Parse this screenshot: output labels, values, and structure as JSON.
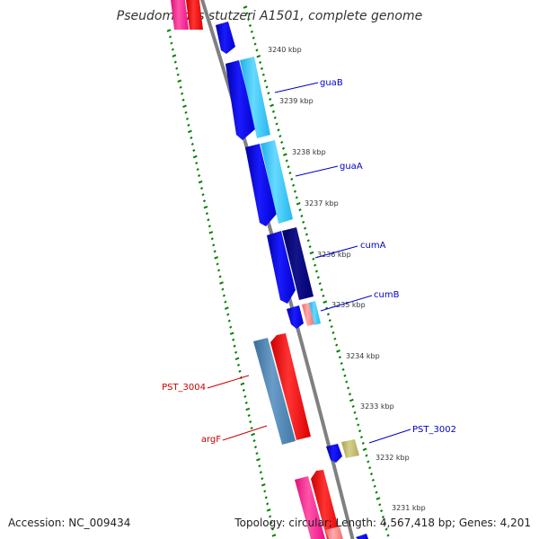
{
  "title": "Pseudomonas stutzeri A1501, complete genome",
  "footer": {
    "accession": "Accession: NC_009434",
    "topology": "Topology: circular; Length: 4,567,418 bp; Genes: 4,201"
  },
  "ticks": [
    "3240 kbp",
    "3239 kbp",
    "3238 kbp",
    "3237 kbp",
    "3236 kbp",
    "3235 kbp",
    "3234 kbp",
    "3233 kbp",
    "3232 kbp",
    "3231 kbp"
  ],
  "gene_labels": {
    "guaB": "guaB",
    "guaA": "guaA",
    "cumA": "cumA",
    "cumB": "cumB",
    "PST_3002": "PST_3002",
    "PST_3004": "PST_3004",
    "argF": "argF"
  },
  "colors": {
    "blue": "#0000ee",
    "cyan": "#33ccff",
    "navy": "#000080",
    "steelblue": "#4682b4",
    "red": "#ff0000",
    "pink": "#ff1493",
    "salmon": "#ff7f7f",
    "khaki": "#bdb76b",
    "backbone": "#808080",
    "dots": "#008000",
    "label_blue": "#0000cc",
    "label_red": "#cc0000"
  }
}
